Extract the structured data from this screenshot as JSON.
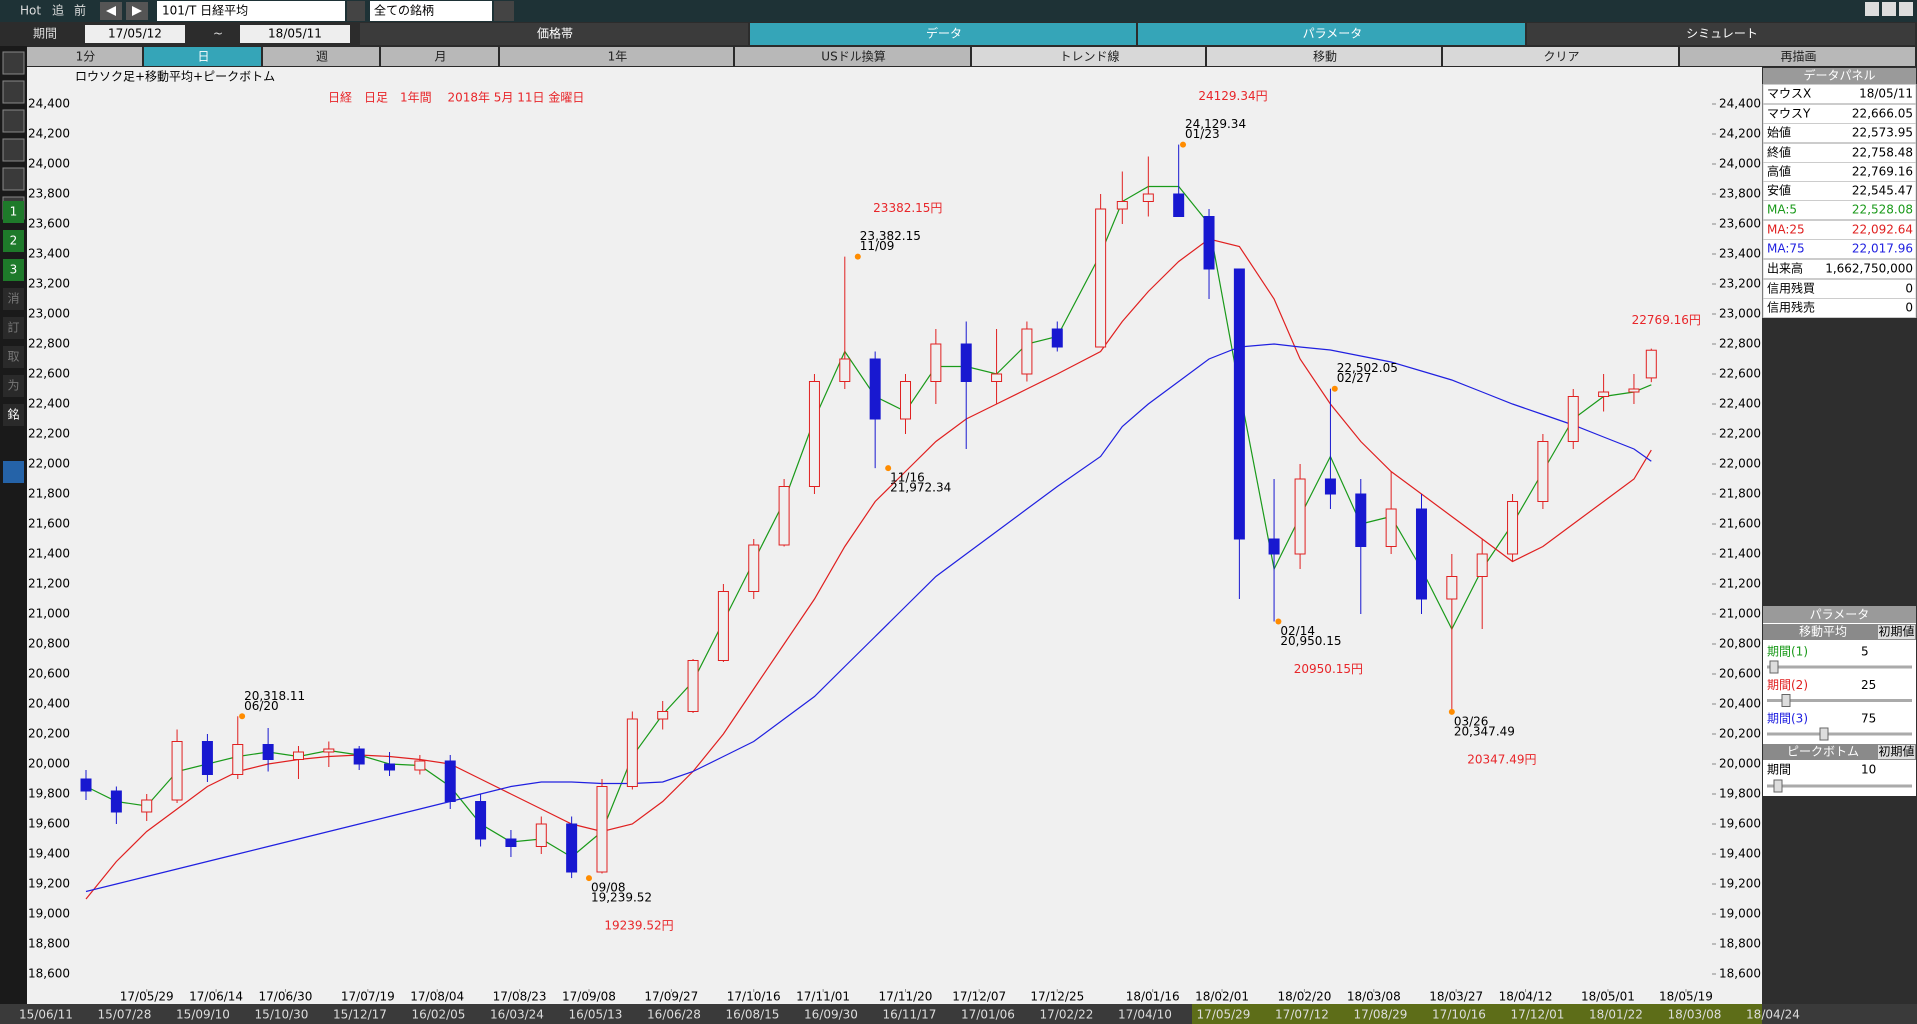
{
  "toolbar": {
    "hot": "Hot",
    "nav": [
      "追",
      "前"
    ],
    "symbol": "101/T 日経平均",
    "universe": "全ての銘柄"
  },
  "period": {
    "label": "期間",
    "from": "17/05/12",
    "sep": "~",
    "to": "18/05/11"
  },
  "tabs": [
    "価格帯",
    "データ",
    "パラメータ",
    "シミュレート"
  ],
  "buttons": [
    "1分",
    "日",
    "週",
    "月",
    "1年",
    "USドル換算",
    "トレンド線",
    "移動",
    "クリア",
    "再描画"
  ],
  "side_icons": [
    "1",
    "2",
    "3",
    "消",
    "訂",
    "取",
    "为",
    "銘"
  ],
  "chart_data": {
    "type": "candlestick",
    "title": "日経　日足　1年間　 2018年 5月 11日 金曜日",
    "subtitle": "ロウソク足+移動平均+ピークボトム",
    "x": [
      "17/05/15",
      "17/05/22",
      "17/05/29",
      "17/06/05",
      "17/06/12",
      "17/06/19",
      "17/06/26",
      "17/07/03",
      "17/07/10",
      "17/07/17",
      "17/07/24",
      "17/07/31",
      "17/08/07",
      "17/08/14",
      "17/08/21",
      "17/08/28",
      "17/09/04",
      "17/09/11",
      "17/09/18",
      "17/09/25",
      "17/10/02",
      "17/10/09",
      "17/10/16",
      "17/10/23",
      "17/10/30",
      "17/11/06",
      "17/11/13",
      "17/11/20",
      "17/11/27",
      "17/12/04",
      "17/12/11",
      "17/12/18",
      "17/12/25",
      "18/01/04",
      "18/01/09",
      "18/01/15",
      "18/01/22",
      "18/01/29",
      "18/02/05",
      "18/02/13",
      "18/02/19",
      "18/02/26",
      "18/03/05",
      "18/03/12",
      "18/03/19",
      "18/03/26",
      "18/04/02",
      "18/04/09",
      "18/04/16",
      "18/04/23",
      "18/04/30",
      "18/05/07",
      "18/05/11"
    ],
    "open": [
      19900,
      19820,
      19680,
      19760,
      20150,
      19930,
      20130,
      20030,
      20080,
      20100,
      20000,
      19960,
      20020,
      19750,
      19500,
      19450,
      19600,
      19280,
      19850,
      20300,
      20350,
      20690,
      21150,
      21460,
      21850,
      22550,
      22700,
      22300,
      22550,
      22800,
      22550,
      22600,
      22900,
      22780,
      23700,
      23750,
      23800,
      23650,
      23300,
      21500,
      21400,
      21900,
      21800,
      21450,
      21700,
      21100,
      21250,
      21400,
      21750,
      22150,
      22450,
      22480,
      22573.95
    ],
    "high": [
      19960,
      19850,
      19800,
      20230,
      20200,
      20318.11,
      20240,
      20120,
      20150,
      20120,
      20080,
      20060,
      20060,
      19800,
      19560,
      19650,
      19650,
      19900,
      20350,
      20420,
      20700,
      21200,
      21500,
      21900,
      22600,
      23382.15,
      22750,
      22600,
      22900,
      22950,
      22900,
      22950,
      22950,
      23800,
      23950,
      24050,
      24129.34,
      23700,
      23300,
      21900,
      22000,
      22502.05,
      21900,
      21950,
      21800,
      21400,
      21500,
      21800,
      22200,
      22500,
      22600,
      22600,
      22769.16
    ],
    "low": [
      19760,
      19600,
      19620,
      19740,
      19880,
      19900,
      19950,
      19900,
      19980,
      19960,
      19920,
      19930,
      19700,
      19450,
      19380,
      19400,
      19239.52,
      19270,
      19830,
      20230,
      20340,
      20680,
      21100,
      21450,
      21800,
      22500,
      21972.34,
      22200,
      22400,
      22100,
      22400,
      22550,
      22750,
      22780,
      23600,
      23650,
      23700,
      23100,
      21100,
      20950.15,
      21300,
      21700,
      21000,
      21400,
      21000,
      20347.49,
      20900,
      21350,
      21700,
      22100,
      22350,
      22400,
      22545.47
    ],
    "close": [
      19820,
      19680,
      19760,
      20150,
      19930,
      20130,
      20030,
      20080,
      20100,
      20000,
      19960,
      20020,
      19750,
      19500,
      19450,
      19600,
      19280,
      19850,
      20300,
      20350,
      20690,
      21150,
      21460,
      21850,
      22550,
      22700,
      22300,
      22550,
      22800,
      22550,
      22600,
      22900,
      22780,
      23700,
      23750,
      23800,
      23650,
      23300,
      21500,
      21400,
      21900,
      21800,
      21450,
      21700,
      21100,
      21250,
      21400,
      21750,
      22150,
      22450,
      22480,
      22500,
      22758.48
    ],
    "up_color": "#e02020",
    "down_color": "#1818d0",
    "series": [
      {
        "name": "MA:5",
        "color": "#1a9a1a",
        "values": [
          19850,
          19750,
          19720,
          19950,
          20000,
          20050,
          20080,
          20050,
          20090,
          20060,
          20000,
          19990,
          19850,
          19600,
          19480,
          19500,
          19380,
          19550,
          20050,
          20330,
          20550,
          20950,
          21350,
          21750,
          22300,
          22750,
          22450,
          22350,
          22650,
          22650,
          22600,
          22800,
          22850,
          23400,
          23750,
          23850,
          23850,
          23600,
          22500,
          21300,
          21650,
          22050,
          21600,
          21650,
          21300,
          20900,
          21300,
          21600,
          21950,
          22300,
          22450,
          22480,
          22528.08
        ]
      },
      {
        "name": "MA:25",
        "color": "#e02020",
        "values": [
          19100,
          19350,
          19550,
          19700,
          19850,
          19950,
          20000,
          20030,
          20050,
          20060,
          20050,
          20030,
          20000,
          19900,
          19800,
          19700,
          19600,
          19550,
          19600,
          19750,
          19950,
          20200,
          20500,
          20800,
          21100,
          21450,
          21750,
          21950,
          22150,
          22300,
          22400,
          22500,
          22600,
          22750,
          22950,
          23150,
          23350,
          23500,
          23450,
          23100,
          22700,
          22400,
          22150,
          21950,
          21800,
          21650,
          21500,
          21350,
          21450,
          21600,
          21750,
          21900,
          22092.64
        ]
      },
      {
        "name": "MA:75",
        "color": "#2020e0",
        "values": [
          19150,
          19200,
          19250,
          19300,
          19350,
          19400,
          19450,
          19500,
          19550,
          19600,
          19650,
          19700,
          19750,
          19800,
          19850,
          19880,
          19880,
          19870,
          19870,
          19880,
          19950,
          20050,
          20150,
          20300,
          20450,
          20650,
          20850,
          21050,
          21250,
          21400,
          21550,
          21700,
          21850,
          22050,
          22250,
          22400,
          22550,
          22700,
          22780,
          22800,
          22780,
          22760,
          22720,
          22680,
          22620,
          22560,
          22480,
          22400,
          22330,
          22260,
          22180,
          22100,
          22017.96
        ]
      }
    ],
    "xlim": [
      "17/05/12",
      "18/05/25"
    ],
    "xticks": [
      "17/05/29",
      "17/06/14",
      "17/06/30",
      "17/07/19",
      "17/08/04",
      "17/08/23",
      "17/09/08",
      "17/09/27",
      "17/10/16",
      "17/11/01",
      "17/11/20",
      "17/12/07",
      "17/12/25",
      "18/01/16",
      "18/02/01",
      "18/02/20",
      "18/03/08",
      "18/03/27",
      "18/04/12",
      "18/05/01",
      "18/05/19"
    ],
    "ylim": [
      18500,
      24500
    ],
    "yticks": [
      {
        "value": 18600,
        "label": "18,600"
      },
      {
        "value": 18800,
        "label": "18,800"
      },
      {
        "value": 19000,
        "label": "19,000"
      },
      {
        "value": 19200,
        "label": "19,200"
      },
      {
        "value": 19400,
        "label": "19,400"
      },
      {
        "value": 19600,
        "label": "19,600"
      },
      {
        "value": 19800,
        "label": "19,800"
      },
      {
        "value": 20000,
        "label": "20,000"
      },
      {
        "value": 20200,
        "label": "20,200"
      },
      {
        "value": 20400,
        "label": "20,400"
      },
      {
        "value": 20600,
        "label": "20,600"
      },
      {
        "value": 20800,
        "label": "20,800"
      },
      {
        "value": 21000,
        "label": "21,000"
      },
      {
        "value": 21200,
        "label": "21,200"
      },
      {
        "value": 21400,
        "label": "21,400"
      },
      {
        "value": 21600,
        "label": "21,600"
      },
      {
        "value": 21800,
        "label": "21,800"
      },
      {
        "value": 22000,
        "label": "22,000"
      },
      {
        "value": 22200,
        "label": "22,200"
      },
      {
        "value": 22400,
        "label": "22,400"
      },
      {
        "value": 22600,
        "label": "22,600"
      },
      {
        "value": 22800,
        "label": "22,800"
      },
      {
        "value": 23000,
        "label": "23,000"
      },
      {
        "value": 23200,
        "label": "23,200"
      },
      {
        "value": 23400,
        "label": "23,400"
      },
      {
        "value": 23600,
        "label": "23,600"
      },
      {
        "value": 23800,
        "label": "23,800"
      },
      {
        "value": 24000,
        "label": "24,000"
      },
      {
        "value": 24200,
        "label": "24,200"
      },
      {
        "value": 24400,
        "label": "24,400"
      }
    ],
    "peaks": [
      {
        "x": "17/06/20",
        "date_label": "06/20",
        "value": 20318.11,
        "label": "20,318.11"
      },
      {
        "x": "17/11/09",
        "date_label": "11/09",
        "value": 23382.15,
        "label": "23,382.15",
        "big_label": "23382.15円"
      },
      {
        "x": "18/01/23",
        "date_label": "01/23",
        "value": 24129.34,
        "label": "24,129.34",
        "big_label": "24129.34円"
      },
      {
        "x": "18/02/27",
        "date_label": "02/27",
        "value": 22502.05,
        "label": "22,502.05"
      }
    ],
    "bottoms": [
      {
        "x": "17/09/08",
        "date_label": "09/08",
        "value": 19239.52,
        "label": "19,239.52",
        "big_label": "19239.52円"
      },
      {
        "x": "17/11/16",
        "date_label": "11/16",
        "value": 21972.34,
        "label": "21,972.34"
      },
      {
        "x": "18/02/14",
        "date_label": "02/14",
        "value": 20950.15,
        "label": "20,950.15",
        "big_label": "20950.15円"
      },
      {
        "x": "18/03/26",
        "date_label": "03/26",
        "value": 20347.49,
        "label": "20,347.49",
        "big_label": "20347.49円"
      }
    ],
    "annotations": [
      {
        "x": "18/05/11",
        "value": 22769.16,
        "label": "22769.16円"
      }
    ]
  },
  "data_panel": {
    "title": "データパネル",
    "rows": [
      [
        "マウスX",
        "18/05/11"
      ],
      [
        "マウスY",
        "22,666.05"
      ],
      [
        "始値",
        "22,573.95"
      ],
      [
        "終値",
        "22,758.48"
      ],
      [
        "高値",
        "22,769.16"
      ],
      [
        "安値",
        "22,545.47"
      ]
    ],
    "ma_values": [
      "22,528.08",
      "22,092.64",
      "22,017.96"
    ],
    "extra_rows": [
      [
        "出来高",
        "1,662,750,000"
      ],
      [
        "信用残買",
        "0"
      ],
      [
        "信用残売",
        "0"
      ]
    ]
  },
  "param_panel": {
    "title": "パラメータ",
    "ma_header": "移動平均",
    "reset": "初期値",
    "ma_periods": [
      {
        "label": "期間(1)",
        "value": "5"
      },
      {
        "label": "期間(2)",
        "value": "25"
      },
      {
        "label": "期間(3)",
        "value": "75"
      }
    ],
    "peak_header": "ピークボトム",
    "peak_period": {
      "label": "期間",
      "value": "10"
    }
  },
  "timeline": [
    "15/06/11",
    "15/07/28",
    "15/09/10",
    "15/10/30",
    "15/12/17",
    "16/02/05",
    "16/03/24",
    "16/05/13",
    "16/06/28",
    "16/08/15",
    "16/09/30",
    "16/11/17",
    "17/01/06",
    "17/02/22",
    "17/04/10",
    "17/05/29",
    "17/07/12",
    "17/08/29",
    "17/10/16",
    "17/12/01",
    "18/01/22",
    "18/03/08",
    "18/04/24"
  ]
}
